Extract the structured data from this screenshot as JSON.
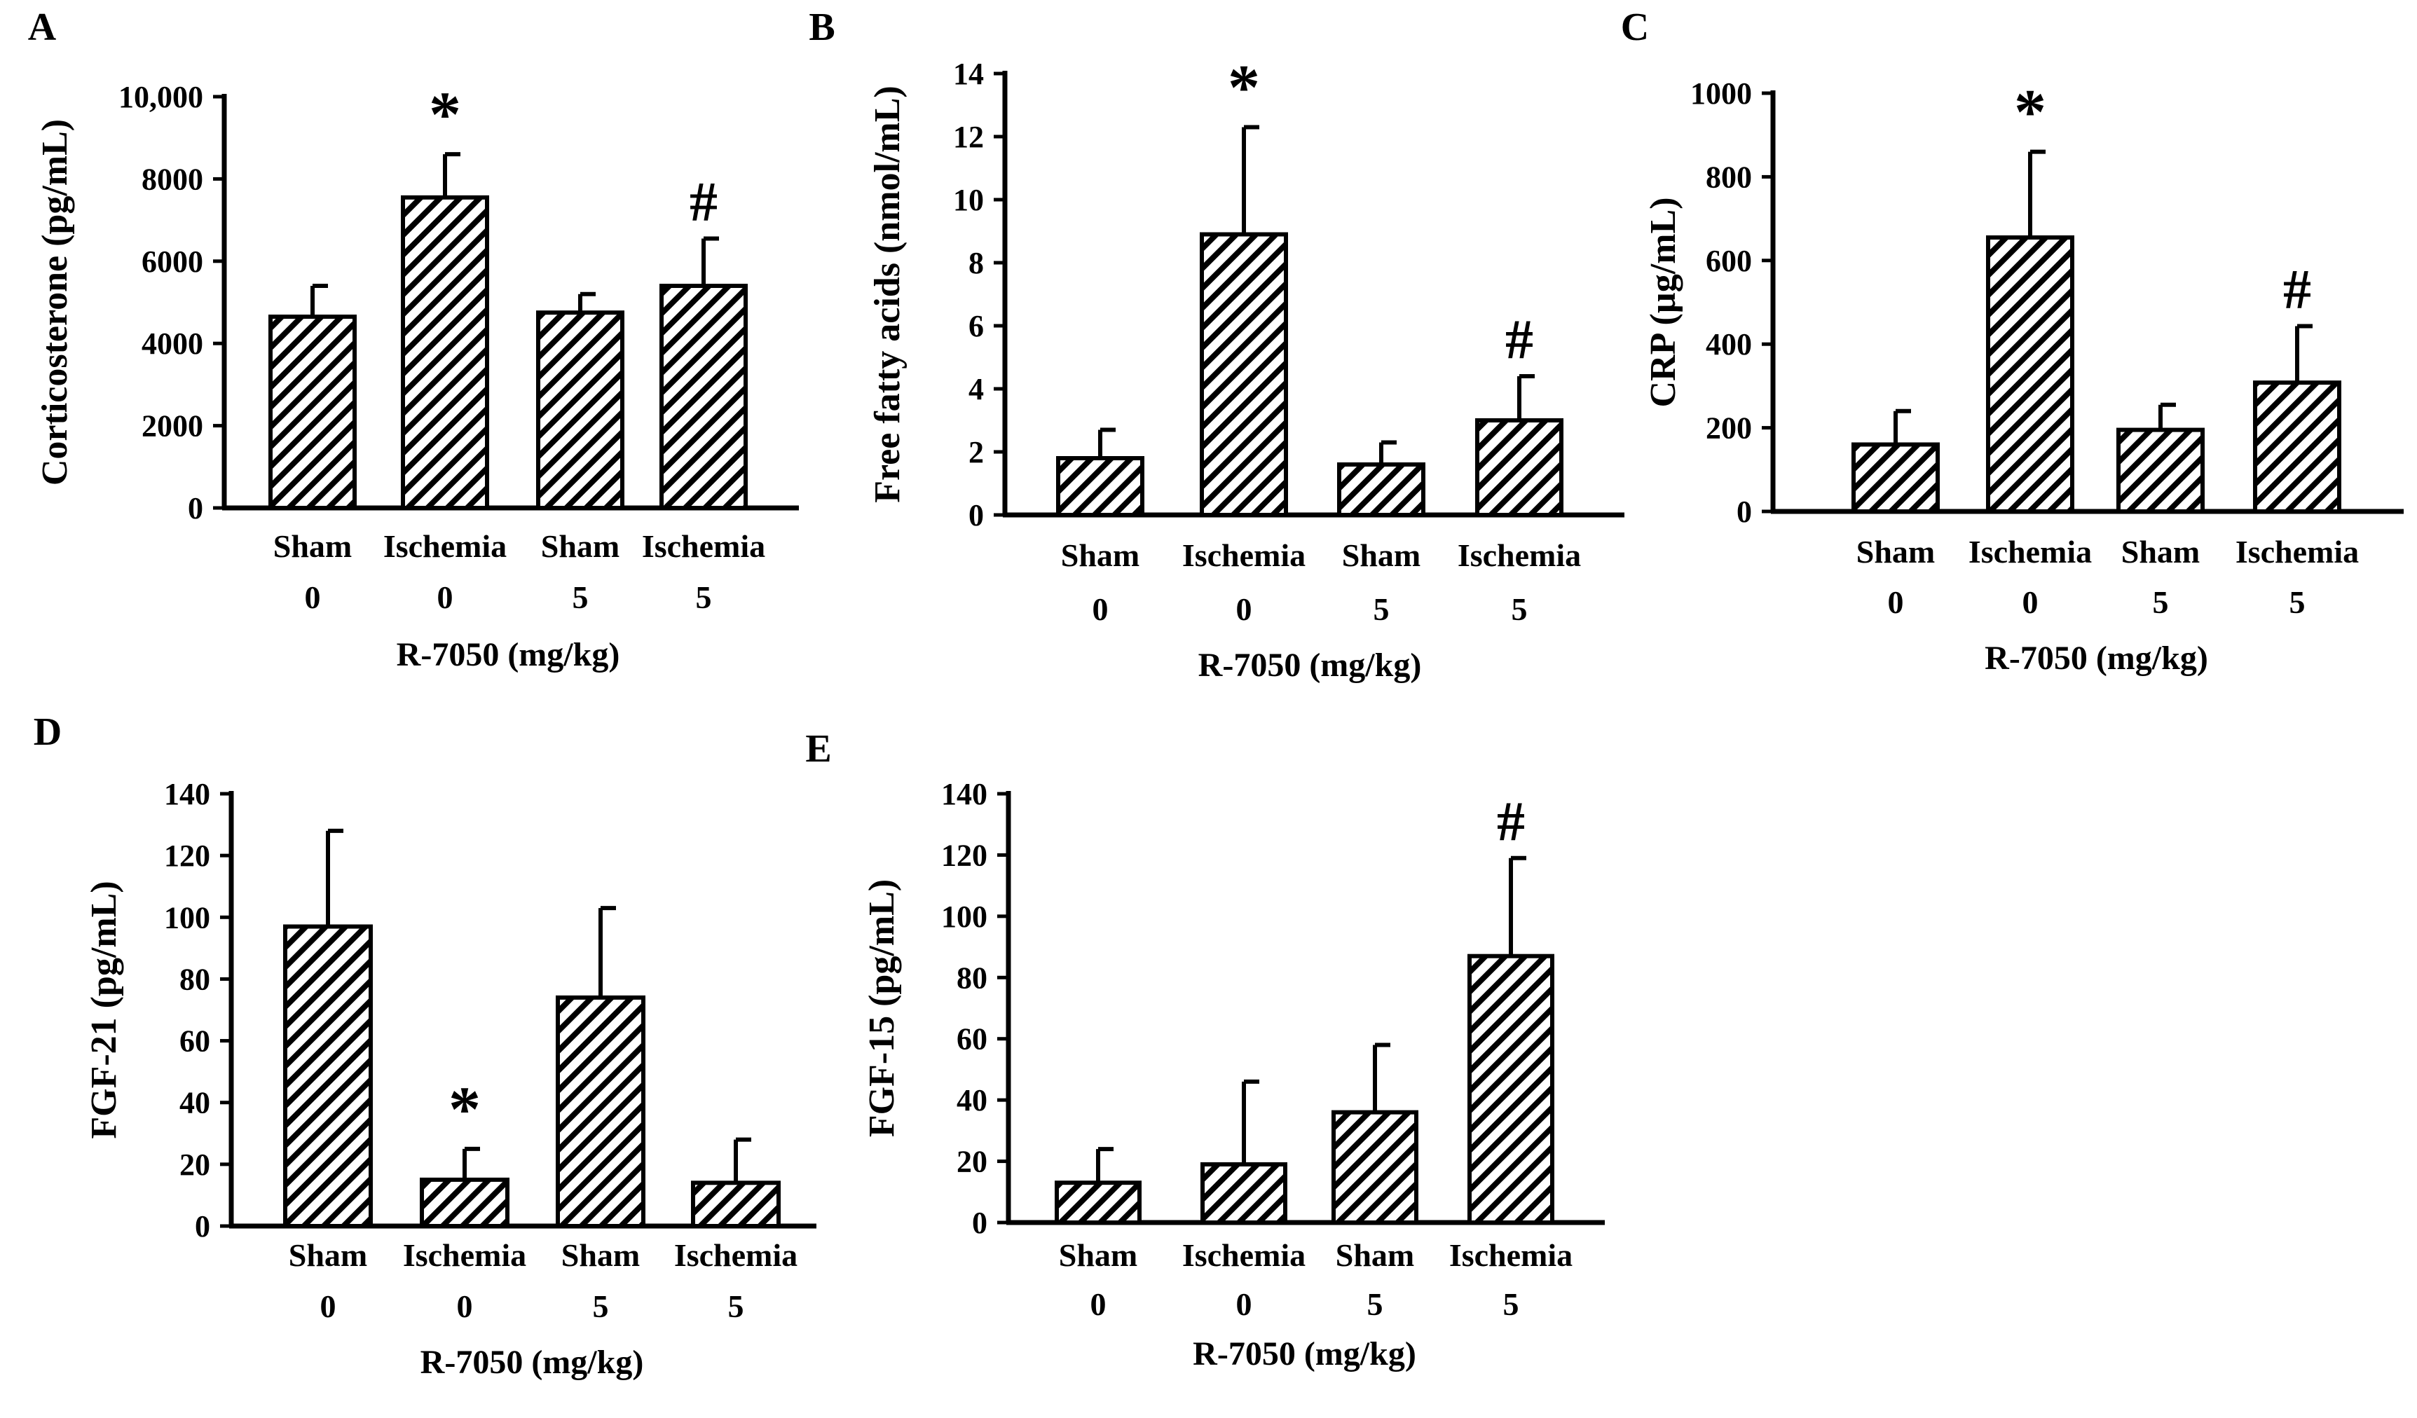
{
  "chart_data": [
    {
      "panel": "A",
      "type": "bar",
      "ylabel": "Corticosterone (pg/mL)",
      "xlabel": "R-7050 (mg/kg)",
      "ylim": [
        0,
        10000
      ],
      "yticks": [
        "0",
        "2000",
        "4000",
        "6000",
        "8000",
        "10,000"
      ],
      "categories": [
        {
          "group": "Sham",
          "dose": "0"
        },
        {
          "group": "Ischemia",
          "dose": "0"
        },
        {
          "group": "Sham",
          "dose": "5"
        },
        {
          "group": "Ischemia",
          "dose": "5"
        }
      ],
      "values": [
        4650,
        7550,
        4750,
        5400
      ],
      "errors": [
        750,
        1050,
        450,
        1150
      ],
      "annotations": [
        "",
        "*",
        "",
        "#"
      ]
    },
    {
      "panel": "B",
      "type": "bar",
      "ylabel": "Free fatty acids (nmol/mL)",
      "xlabel": "R-7050 (mg/kg)",
      "ylim": [
        0,
        14
      ],
      "yticks": [
        "0",
        "2",
        "4",
        "6",
        "8",
        "10",
        "12",
        "14"
      ],
      "categories": [
        {
          "group": "Sham",
          "dose": "0"
        },
        {
          "group": "Ischemia",
          "dose": "0"
        },
        {
          "group": "Sham",
          "dose": "5"
        },
        {
          "group": "Ischemia",
          "dose": "5"
        }
      ],
      "values": [
        1.8,
        8.9,
        1.6,
        3.0
      ],
      "errors": [
        0.9,
        3.4,
        0.7,
        1.4
      ],
      "annotations": [
        "",
        "*",
        "",
        "#"
      ]
    },
    {
      "panel": "C",
      "type": "bar",
      "ylabel": "CRP (µg/mL)",
      "xlabel": "R-7050 (mg/kg)",
      "ylim": [
        0,
        1000
      ],
      "yticks": [
        "0",
        "200",
        "400",
        "600",
        "800",
        "1000"
      ],
      "categories": [
        {
          "group": "Sham",
          "dose": "0"
        },
        {
          "group": "Ischemia",
          "dose": "0"
        },
        {
          "group": "Sham",
          "dose": "5"
        },
        {
          "group": "Ischemia",
          "dose": "5"
        }
      ],
      "values": [
        160,
        655,
        195,
        308
      ],
      "errors": [
        80,
        205,
        60,
        135
      ],
      "annotations": [
        "",
        "*",
        "",
        "#"
      ]
    },
    {
      "panel": "D",
      "type": "bar",
      "ylabel": "FGF-21 (pg/mL)",
      "xlabel": "R-7050 (mg/kg)",
      "ylim": [
        0,
        140
      ],
      "yticks": [
        "0",
        "20",
        "40",
        "60",
        "80",
        "100",
        "120",
        "140"
      ],
      "categories": [
        {
          "group": "Sham",
          "dose": "0"
        },
        {
          "group": "Ischemia",
          "dose": "0"
        },
        {
          "group": "Sham",
          "dose": "5"
        },
        {
          "group": "Ischemia",
          "dose": "5"
        }
      ],
      "values": [
        97,
        15,
        74,
        14
      ],
      "errors": [
        31,
        10,
        29,
        14
      ],
      "annotations": [
        "",
        "*",
        "",
        ""
      ]
    },
    {
      "panel": "E",
      "type": "bar",
      "ylabel": "FGF-15 (pg/mL)",
      "xlabel": "R-7050 (mg/kg)",
      "ylim": [
        0,
        140
      ],
      "yticks": [
        "0",
        "20",
        "40",
        "60",
        "80",
        "100",
        "120",
        "140"
      ],
      "categories": [
        {
          "group": "Sham",
          "dose": "0"
        },
        {
          "group": "Ischemia",
          "dose": "0"
        },
        {
          "group": "Sham",
          "dose": "5"
        },
        {
          "group": "Ischemia",
          "dose": "5"
        }
      ],
      "values": [
        13,
        19,
        36,
        87
      ],
      "errors": [
        11,
        27,
        22,
        32
      ],
      "annotations": [
        "",
        "",
        "",
        "#"
      ]
    }
  ]
}
